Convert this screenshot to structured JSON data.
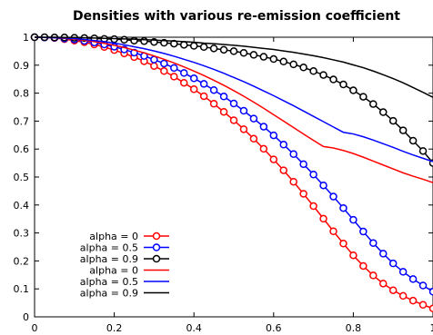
{
  "chart_data": {
    "type": "line",
    "title": "Densities with various re-emission coefficient",
    "xlabel": "",
    "ylabel": "",
    "xlim": [
      0,
      1
    ],
    "ylim": [
      0,
      1
    ],
    "xticks": [
      "0",
      "0.2",
      "0.4",
      "0.6",
      "0.8",
      "1"
    ],
    "yticks": [
      "0",
      "0.1",
      "0.2",
      "0.3",
      "0.4",
      "0.5",
      "0.6",
      "0.7",
      "0.8",
      "0.9",
      "1"
    ],
    "grid": false,
    "legend_position": "bottom-left",
    "x": [
      0,
      0.025,
      0.05,
      0.075,
      0.1,
      0.125,
      0.15,
      0.175,
      0.2,
      0.225,
      0.25,
      0.275,
      0.3,
      0.325,
      0.35,
      0.375,
      0.4,
      0.425,
      0.45,
      0.475,
      0.5,
      0.525,
      0.55,
      0.575,
      0.6,
      0.625,
      0.65,
      0.675,
      0.7,
      0.725,
      0.75,
      0.775,
      0.8,
      0.825,
      0.85,
      0.875,
      0.9,
      0.925,
      0.95,
      0.975,
      1
    ],
    "series": [
      {
        "name": "alpha = 0",
        "color": "#ff0000",
        "marker": "circle",
        "values": [
          1.0,
          0.999,
          0.997,
          0.993,
          0.988,
          0.982,
          0.974,
          0.965,
          0.954,
          0.942,
          0.929,
          0.914,
          0.897,
          0.879,
          0.859,
          0.837,
          0.814,
          0.789,
          0.762,
          0.733,
          0.703,
          0.671,
          0.637,
          0.601,
          0.563,
          0.524,
          0.483,
          0.44,
          0.396,
          0.351,
          0.306,
          0.262,
          0.22,
          0.182,
          0.148,
          0.119,
          0.095,
          0.075,
          0.058,
          0.043,
          0.03
        ]
      },
      {
        "name": "alpha = 0.5",
        "color": "#0000ff",
        "marker": "circle",
        "values": [
          1.0,
          0.999,
          0.998,
          0.995,
          0.992,
          0.987,
          0.981,
          0.974,
          0.966,
          0.956,
          0.945,
          0.933,
          0.92,
          0.906,
          0.89,
          0.872,
          0.853,
          0.833,
          0.811,
          0.788,
          0.763,
          0.737,
          0.709,
          0.68,
          0.649,
          0.616,
          0.582,
          0.546,
          0.509,
          0.47,
          0.43,
          0.389,
          0.347,
          0.305,
          0.264,
          0.226,
          0.191,
          0.161,
          0.135,
          0.112,
          0.09
        ]
      },
      {
        "name": "alpha = 0.9",
        "color": "#000000",
        "marker": "circle",
        "values": [
          1.0,
          1.0,
          0.999,
          0.999,
          0.998,
          0.997,
          0.996,
          0.994,
          0.993,
          0.991,
          0.988,
          0.986,
          0.983,
          0.98,
          0.977,
          0.973,
          0.969,
          0.965,
          0.96,
          0.955,
          0.95,
          0.944,
          0.937,
          0.93,
          0.922,
          0.913,
          0.903,
          0.892,
          0.879,
          0.865,
          0.849,
          0.831,
          0.81,
          0.787,
          0.761,
          0.732,
          0.701,
          0.667,
          0.63,
          0.593,
          0.55
        ]
      },
      {
        "name": "alpha = 0",
        "color": "#ff0000",
        "marker": "none",
        "values": [
          1.0,
          0.999,
          0.998,
          0.996,
          0.993,
          0.989,
          0.984,
          0.978,
          0.971,
          0.963,
          0.954,
          0.944,
          0.933,
          0.921,
          0.908,
          0.894,
          0.879,
          0.863,
          0.846,
          0.828,
          0.809,
          0.789,
          0.768,
          0.746,
          0.723,
          0.7,
          0.677,
          0.654,
          0.631,
          0.609,
          0.604,
          0.595,
          0.584,
          0.571,
          0.557,
          0.543,
          0.529,
          0.515,
          0.503,
          0.492,
          0.48
        ]
      },
      {
        "name": "alpha = 0.5",
        "color": "#0000ff",
        "marker": "none",
        "values": [
          1.0,
          0.999,
          0.998,
          0.997,
          0.995,
          0.992,
          0.988,
          0.984,
          0.979,
          0.973,
          0.966,
          0.959,
          0.951,
          0.942,
          0.932,
          0.921,
          0.91,
          0.898,
          0.885,
          0.871,
          0.856,
          0.841,
          0.825,
          0.808,
          0.791,
          0.773,
          0.755,
          0.736,
          0.717,
          0.698,
          0.679,
          0.66,
          0.654,
          0.644,
          0.632,
          0.619,
          0.606,
          0.592,
          0.579,
          0.567,
          0.555
        ]
      },
      {
        "name": "alpha = 0.9",
        "color": "#000000",
        "marker": "none",
        "values": [
          1.0,
          1.0,
          1.0,
          0.999,
          0.999,
          0.998,
          0.997,
          0.996,
          0.995,
          0.994,
          0.993,
          0.991,
          0.99,
          0.988,
          0.986,
          0.984,
          0.982,
          0.979,
          0.977,
          0.974,
          0.971,
          0.968,
          0.964,
          0.96,
          0.956,
          0.951,
          0.946,
          0.94,
          0.934,
          0.927,
          0.919,
          0.911,
          0.901,
          0.891,
          0.879,
          0.866,
          0.852,
          0.837,
          0.82,
          0.803,
          0.785
        ]
      }
    ]
  }
}
